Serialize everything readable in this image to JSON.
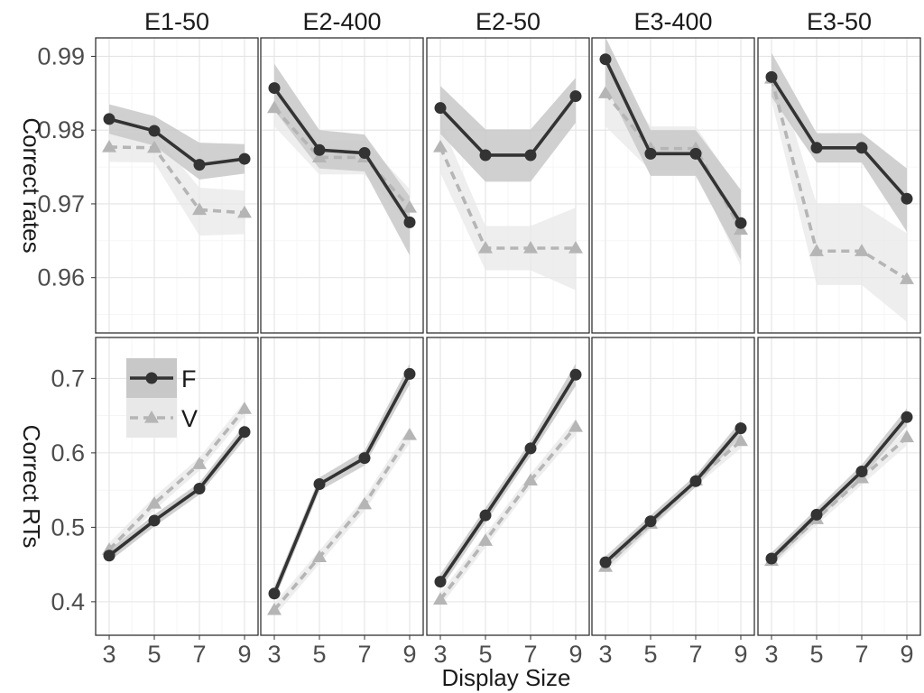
{
  "chart_data": {
    "type": "line",
    "layout": "faceted",
    "panels": [
      "E1-50",
      "E2-400",
      "E2-50",
      "E3-400",
      "E3-50"
    ],
    "x": [
      3,
      5,
      7,
      9
    ],
    "xticks": [
      "3",
      "5",
      "7",
      "9"
    ],
    "xlabel": "Display Size",
    "xlim": [
      2.4,
      9.6
    ],
    "legend": {
      "placement": "inside-bottom-left-panel",
      "entries": [
        {
          "label": "F",
          "color": "#333333",
          "ribbon": "#c8c8c8",
          "marker": "circle",
          "dash": "solid"
        },
        {
          "label": "V",
          "color": "#b5b5b5",
          "ribbon": "#e8e8e8",
          "marker": "triangle",
          "dash": "dashed"
        }
      ]
    },
    "rows": [
      {
        "ylabel": "Correct rates",
        "ylim": [
          0.9525,
          0.9925
        ],
        "yticks": [
          0.96,
          0.97,
          0.98,
          0.99
        ],
        "yticklabels": [
          "0.96",
          "0.97",
          "0.98",
          "0.99"
        ],
        "minor_yticks": [
          0.955,
          0.965,
          0.975,
          0.985
        ],
        "panels": [
          {
            "series": {
              "F": {
                "values": [
                  0.9815,
                  0.9799,
                  0.9753,
                  0.9761
                ],
                "lower": [
                  0.9795,
                  0.9779,
                  0.9733,
                  0.9741
                ],
                "upper": [
                  0.9835,
                  0.9819,
                  0.9783,
                  0.9781
                ]
              },
              "V": {
                "values": [
                  0.9777,
                  0.9776,
                  0.9692,
                  0.9688
                ],
                "lower": [
                  0.9757,
                  0.9756,
                  0.9657,
                  0.9659
                ],
                "upper": [
                  0.9797,
                  0.9796,
                  0.9722,
                  0.9718
                ]
              }
            }
          },
          {
            "series": {
              "F": {
                "values": [
                  0.9857,
                  0.9773,
                  0.9769,
                  0.9675
                ],
                "lower": [
                  0.9827,
                  0.9748,
                  0.9744,
                  0.963
                ],
                "upper": [
                  0.989,
                  0.98,
                  0.9794,
                  0.971
                ]
              },
              "V": {
                "values": [
                  0.983,
                  0.9763,
                  0.9763,
                  0.9695
                ],
                "lower": [
                  0.9805,
                  0.974,
                  0.974,
                  0.967
                ],
                "upper": [
                  0.9855,
                  0.9786,
                  0.9786,
                  0.972
                ]
              }
            }
          },
          {
            "series": {
              "F": {
                "values": [
                  0.983,
                  0.9766,
                  0.9766,
                  0.9846
                ],
                "lower": [
                  0.9795,
                  0.973,
                  0.973,
                  0.981
                ],
                "upper": [
                  0.986,
                  0.9801,
                  0.9801,
                  0.9871
                ]
              },
              "V": {
                "values": [
                  0.9777,
                  0.964,
                  0.964,
                  0.964
                ],
                "lower": [
                  0.9742,
                  0.961,
                  0.961,
                  0.9583
                ],
                "upper": [
                  0.9812,
                  0.967,
                  0.967,
                  0.9695
                ]
              }
            }
          },
          {
            "series": {
              "F": {
                "values": [
                  0.9896,
                  0.9768,
                  0.9768,
                  0.9674
                ],
                "lower": [
                  0.9861,
                  0.9738,
                  0.9738,
                  0.9624
                ],
                "upper": [
                  0.9926,
                  0.98,
                  0.98,
                  0.9719
                ]
              },
              "V": {
                "values": [
                  0.985,
                  0.9775,
                  0.9775,
                  0.9665
                ],
                "lower": [
                  0.9805,
                  0.9745,
                  0.9745,
                  0.9615
                ],
                "upper": [
                  0.9895,
                  0.9805,
                  0.9805,
                  0.9715
                ]
              }
            }
          },
          {
            "series": {
              "F": {
                "values": [
                  0.9872,
                  0.9776,
                  0.9776,
                  0.9707
                ],
                "lower": [
                  0.9845,
                  0.9756,
                  0.9756,
                  0.9662
                ],
                "upper": [
                  0.9905,
                  0.9796,
                  0.9796,
                  0.9748
                ]
              },
              "V": {
                "values": [
                  0.987,
                  0.9636,
                  0.9636,
                  0.9598
                ],
                "lower": [
                  0.984,
                  0.959,
                  0.959,
                  0.954
                ],
                "upper": [
                  0.99,
                  0.97,
                  0.97,
                  0.966
                ]
              }
            }
          }
        ]
      },
      {
        "ylabel": "Correct RTs",
        "ylim": [
          0.355,
          0.755
        ],
        "yticks": [
          0.4,
          0.5,
          0.6,
          0.7
        ],
        "yticklabels": [
          "0.4",
          "0.5",
          "0.6",
          "0.7"
        ],
        "minor_yticks": [
          0.45,
          0.55,
          0.65
        ],
        "panels": [
          {
            "series": {
              "F": {
                "values": [
                  0.462,
                  0.509,
                  0.552,
                  0.628
                ],
                "lower": [
                  0.454,
                  0.501,
                  0.544,
                  0.618
                ],
                "upper": [
                  0.47,
                  0.517,
                  0.56,
                  0.638
                ]
              },
              "V": {
                "values": [
                  0.47,
                  0.532,
                  0.585,
                  0.659
                ],
                "lower": [
                  0.461,
                  0.523,
                  0.576,
                  0.649
                ],
                "upper": [
                  0.479,
                  0.541,
                  0.594,
                  0.669
                ]
              }
            }
          },
          {
            "series": {
              "F": {
                "values": [
                  0.411,
                  0.558,
                  0.593,
                  0.706
                ],
                "lower": [
                  0.402,
                  0.549,
                  0.583,
                  0.692
                ],
                "upper": [
                  0.42,
                  0.567,
                  0.603,
                  0.72
                ]
              },
              "V": {
                "values": [
                  0.389,
                  0.46,
                  0.531,
                  0.624
                ],
                "lower": [
                  0.38,
                  0.451,
                  0.522,
                  0.613
                ],
                "upper": [
                  0.398,
                  0.469,
                  0.54,
                  0.635
                ]
              }
            }
          },
          {
            "series": {
              "F": {
                "values": [
                  0.427,
                  0.516,
                  0.606,
                  0.705
                ],
                "lower": [
                  0.417,
                  0.506,
                  0.596,
                  0.69
                ],
                "upper": [
                  0.437,
                  0.526,
                  0.616,
                  0.72
                ]
              },
              "V": {
                "values": [
                  0.403,
                  0.482,
                  0.563,
                  0.635
                ],
                "lower": [
                  0.394,
                  0.473,
                  0.554,
                  0.624
                ],
                "upper": [
                  0.412,
                  0.491,
                  0.572,
                  0.646
                ]
              }
            }
          },
          {
            "series": {
              "F": {
                "values": [
                  0.453,
                  0.508,
                  0.562,
                  0.633
                ],
                "lower": [
                  0.445,
                  0.5,
                  0.554,
                  0.623
                ],
                "upper": [
                  0.461,
                  0.516,
                  0.57,
                  0.643
                ]
              },
              "V": {
                "values": [
                  0.447,
                  0.505,
                  0.563,
                  0.616
                ],
                "lower": [
                  0.439,
                  0.497,
                  0.555,
                  0.606
                ],
                "upper": [
                  0.455,
                  0.513,
                  0.571,
                  0.626
                ]
              }
            }
          },
          {
            "series": {
              "F": {
                "values": [
                  0.458,
                  0.517,
                  0.575,
                  0.648
                ],
                "lower": [
                  0.45,
                  0.509,
                  0.566,
                  0.636
                ],
                "upper": [
                  0.466,
                  0.525,
                  0.584,
                  0.66
                ]
              },
              "V": {
                "values": [
                  0.455,
                  0.511,
                  0.566,
                  0.621
                ],
                "lower": [
                  0.447,
                  0.503,
                  0.557,
                  0.61
                ],
                "upper": [
                  0.463,
                  0.519,
                  0.575,
                  0.632
                ]
              }
            }
          }
        ]
      }
    ]
  }
}
